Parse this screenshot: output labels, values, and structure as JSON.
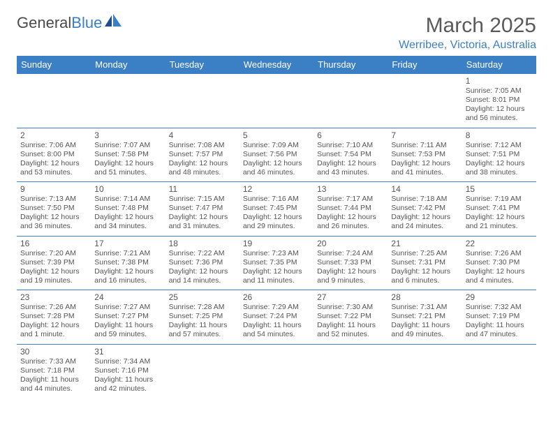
{
  "logo": {
    "text1": "General",
    "text2": "Blue"
  },
  "title": "March 2025",
  "location": "Werribee, Victoria, Australia",
  "colors": {
    "header_bg": "#3b7fc4",
    "header_text": "#ffffff",
    "border": "#3b7fc4",
    "text": "#555555",
    "title_text": "#5a5a5a",
    "location_text": "#3b7fc4",
    "background": "#ffffff"
  },
  "typography": {
    "title_fontsize": 30,
    "location_fontsize": 16,
    "dayheader_fontsize": 13,
    "cell_fontsize": 10.5,
    "font_family": "Arial"
  },
  "dayHeaders": [
    "Sunday",
    "Monday",
    "Tuesday",
    "Wednesday",
    "Thursday",
    "Friday",
    "Saturday"
  ],
  "weeks": [
    [
      null,
      null,
      null,
      null,
      null,
      null,
      {
        "d": "1",
        "sr": "Sunrise: 7:05 AM",
        "ss": "Sunset: 8:01 PM",
        "dl1": "Daylight: 12 hours",
        "dl2": "and 56 minutes."
      }
    ],
    [
      {
        "d": "2",
        "sr": "Sunrise: 7:06 AM",
        "ss": "Sunset: 8:00 PM",
        "dl1": "Daylight: 12 hours",
        "dl2": "and 53 minutes."
      },
      {
        "d": "3",
        "sr": "Sunrise: 7:07 AM",
        "ss": "Sunset: 7:58 PM",
        "dl1": "Daylight: 12 hours",
        "dl2": "and 51 minutes."
      },
      {
        "d": "4",
        "sr": "Sunrise: 7:08 AM",
        "ss": "Sunset: 7:57 PM",
        "dl1": "Daylight: 12 hours",
        "dl2": "and 48 minutes."
      },
      {
        "d": "5",
        "sr": "Sunrise: 7:09 AM",
        "ss": "Sunset: 7:56 PM",
        "dl1": "Daylight: 12 hours",
        "dl2": "and 46 minutes."
      },
      {
        "d": "6",
        "sr": "Sunrise: 7:10 AM",
        "ss": "Sunset: 7:54 PM",
        "dl1": "Daylight: 12 hours",
        "dl2": "and 43 minutes."
      },
      {
        "d": "7",
        "sr": "Sunrise: 7:11 AM",
        "ss": "Sunset: 7:53 PM",
        "dl1": "Daylight: 12 hours",
        "dl2": "and 41 minutes."
      },
      {
        "d": "8",
        "sr": "Sunrise: 7:12 AM",
        "ss": "Sunset: 7:51 PM",
        "dl1": "Daylight: 12 hours",
        "dl2": "and 38 minutes."
      }
    ],
    [
      {
        "d": "9",
        "sr": "Sunrise: 7:13 AM",
        "ss": "Sunset: 7:50 PM",
        "dl1": "Daylight: 12 hours",
        "dl2": "and 36 minutes."
      },
      {
        "d": "10",
        "sr": "Sunrise: 7:14 AM",
        "ss": "Sunset: 7:48 PM",
        "dl1": "Daylight: 12 hours",
        "dl2": "and 34 minutes."
      },
      {
        "d": "11",
        "sr": "Sunrise: 7:15 AM",
        "ss": "Sunset: 7:47 PM",
        "dl1": "Daylight: 12 hours",
        "dl2": "and 31 minutes."
      },
      {
        "d": "12",
        "sr": "Sunrise: 7:16 AM",
        "ss": "Sunset: 7:45 PM",
        "dl1": "Daylight: 12 hours",
        "dl2": "and 29 minutes."
      },
      {
        "d": "13",
        "sr": "Sunrise: 7:17 AM",
        "ss": "Sunset: 7:44 PM",
        "dl1": "Daylight: 12 hours",
        "dl2": "and 26 minutes."
      },
      {
        "d": "14",
        "sr": "Sunrise: 7:18 AM",
        "ss": "Sunset: 7:42 PM",
        "dl1": "Daylight: 12 hours",
        "dl2": "and 24 minutes."
      },
      {
        "d": "15",
        "sr": "Sunrise: 7:19 AM",
        "ss": "Sunset: 7:41 PM",
        "dl1": "Daylight: 12 hours",
        "dl2": "and 21 minutes."
      }
    ],
    [
      {
        "d": "16",
        "sr": "Sunrise: 7:20 AM",
        "ss": "Sunset: 7:39 PM",
        "dl1": "Daylight: 12 hours",
        "dl2": "and 19 minutes."
      },
      {
        "d": "17",
        "sr": "Sunrise: 7:21 AM",
        "ss": "Sunset: 7:38 PM",
        "dl1": "Daylight: 12 hours",
        "dl2": "and 16 minutes."
      },
      {
        "d": "18",
        "sr": "Sunrise: 7:22 AM",
        "ss": "Sunset: 7:36 PM",
        "dl1": "Daylight: 12 hours",
        "dl2": "and 14 minutes."
      },
      {
        "d": "19",
        "sr": "Sunrise: 7:23 AM",
        "ss": "Sunset: 7:35 PM",
        "dl1": "Daylight: 12 hours",
        "dl2": "and 11 minutes."
      },
      {
        "d": "20",
        "sr": "Sunrise: 7:24 AM",
        "ss": "Sunset: 7:33 PM",
        "dl1": "Daylight: 12 hours",
        "dl2": "and 9 minutes."
      },
      {
        "d": "21",
        "sr": "Sunrise: 7:25 AM",
        "ss": "Sunset: 7:31 PM",
        "dl1": "Daylight: 12 hours",
        "dl2": "and 6 minutes."
      },
      {
        "d": "22",
        "sr": "Sunrise: 7:26 AM",
        "ss": "Sunset: 7:30 PM",
        "dl1": "Daylight: 12 hours",
        "dl2": "and 4 minutes."
      }
    ],
    [
      {
        "d": "23",
        "sr": "Sunrise: 7:26 AM",
        "ss": "Sunset: 7:28 PM",
        "dl1": "Daylight: 12 hours",
        "dl2": "and 1 minute."
      },
      {
        "d": "24",
        "sr": "Sunrise: 7:27 AM",
        "ss": "Sunset: 7:27 PM",
        "dl1": "Daylight: 11 hours",
        "dl2": "and 59 minutes."
      },
      {
        "d": "25",
        "sr": "Sunrise: 7:28 AM",
        "ss": "Sunset: 7:25 PM",
        "dl1": "Daylight: 11 hours",
        "dl2": "and 57 minutes."
      },
      {
        "d": "26",
        "sr": "Sunrise: 7:29 AM",
        "ss": "Sunset: 7:24 PM",
        "dl1": "Daylight: 11 hours",
        "dl2": "and 54 minutes."
      },
      {
        "d": "27",
        "sr": "Sunrise: 7:30 AM",
        "ss": "Sunset: 7:22 PM",
        "dl1": "Daylight: 11 hours",
        "dl2": "and 52 minutes."
      },
      {
        "d": "28",
        "sr": "Sunrise: 7:31 AM",
        "ss": "Sunset: 7:21 PM",
        "dl1": "Daylight: 11 hours",
        "dl2": "and 49 minutes."
      },
      {
        "d": "29",
        "sr": "Sunrise: 7:32 AM",
        "ss": "Sunset: 7:19 PM",
        "dl1": "Daylight: 11 hours",
        "dl2": "and 47 minutes."
      }
    ],
    [
      {
        "d": "30",
        "sr": "Sunrise: 7:33 AM",
        "ss": "Sunset: 7:18 PM",
        "dl1": "Daylight: 11 hours",
        "dl2": "and 44 minutes."
      },
      {
        "d": "31",
        "sr": "Sunrise: 7:34 AM",
        "ss": "Sunset: 7:16 PM",
        "dl1": "Daylight: 11 hours",
        "dl2": "and 42 minutes."
      },
      null,
      null,
      null,
      null,
      null
    ]
  ]
}
